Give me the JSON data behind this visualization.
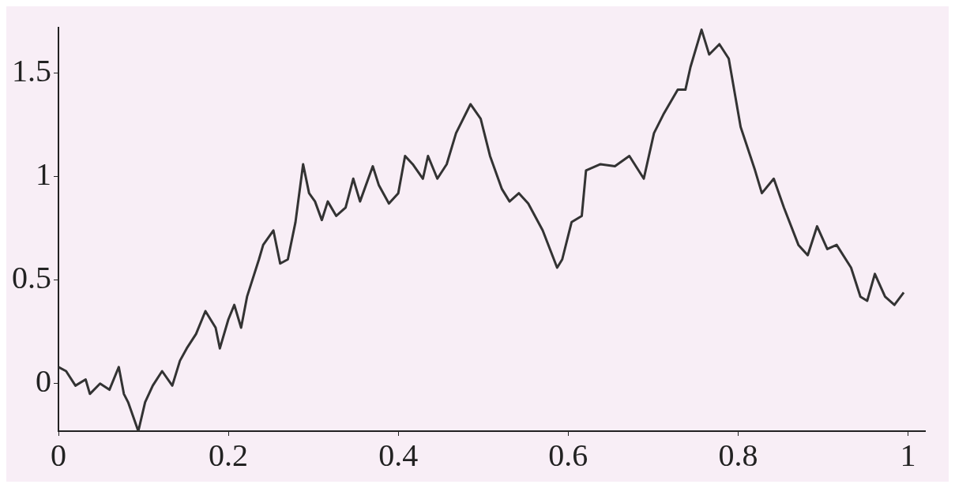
{
  "chart_data": {
    "type": "line",
    "x": [
      0,
      0.009,
      0.02,
      0.032,
      0.037,
      0.049,
      0.06,
      0.071,
      0.077,
      0.082,
      0.094,
      0.102,
      0.111,
      0.122,
      0.134,
      0.143,
      0.151,
      0.162,
      0.173,
      0.185,
      0.19,
      0.2,
      0.207,
      0.215,
      0.222,
      0.236,
      0.241,
      0.253,
      0.261,
      0.27,
      0.279,
      0.288,
      0.295,
      0.302,
      0.31,
      0.317,
      0.327,
      0.338,
      0.347,
      0.355,
      0.37,
      0.377,
      0.389,
      0.4,
      0.408,
      0.417,
      0.429,
      0.435,
      0.446,
      0.457,
      0.468,
      0.485,
      0.497,
      0.508,
      0.522,
      0.531,
      0.542,
      0.553,
      0.57,
      0.587,
      0.593,
      0.604,
      0.616,
      0.621,
      0.638,
      0.655,
      0.672,
      0.689,
      0.701,
      0.712,
      0.729,
      0.738,
      0.744,
      0.757,
      0.766,
      0.778,
      0.789,
      0.803,
      0.82,
      0.828,
      0.842,
      0.854,
      0.871,
      0.882,
      0.893,
      0.905,
      0.916,
      0.933,
      0.944,
      0.952,
      0.961,
      0.973,
      0.984,
      0.995
    ],
    "series": [
      {
        "color": "#333333",
        "values": [
          0.08,
          0.06,
          -0.01,
          0.02,
          -0.05,
          0,
          -0.03,
          0.08,
          -0.05,
          -0.09,
          -0.23,
          -0.09,
          -0.01,
          0.06,
          -0.01,
          0.11,
          0.17,
          0.24,
          0.35,
          0.27,
          0.17,
          0.31,
          0.38,
          0.27,
          0.42,
          0.6,
          0.67,
          0.74,
          0.58,
          0.6,
          0.78,
          1.06,
          0.92,
          0.88,
          0.79,
          0.88,
          0.81,
          0.85,
          0.99,
          0.88,
          1.05,
          0.96,
          0.87,
          0.92,
          1.1,
          1.06,
          0.99,
          1.1,
          0.99,
          1.06,
          1.21,
          1.35,
          1.28,
          1.1,
          0.94,
          0.88,
          0.92,
          0.87,
          0.74,
          0.56,
          0.6,
          0.78,
          0.81,
          1.03,
          1.06,
          1.05,
          1.1,
          0.99,
          1.21,
          1.3,
          1.42,
          1.42,
          1.53,
          1.71,
          1.59,
          1.64,
          1.57,
          1.24,
          1.03,
          0.92,
          0.99,
          0.85,
          0.67,
          0.62,
          0.76,
          0.65,
          0.67,
          0.56,
          0.42,
          0.4,
          0.53,
          0.42,
          0.38,
          0.44
        ]
      }
    ],
    "xlim": [
      0,
      1.02
    ],
    "ylim": [
      -0.23,
      1.72
    ],
    "xticks": [
      0,
      0.2,
      0.4,
      0.6,
      0.8,
      1
    ],
    "yticks": [
      0,
      0.5,
      1,
      1.5
    ],
    "grid": false,
    "legend": false,
    "marker": "none",
    "line_style": "solid"
  }
}
